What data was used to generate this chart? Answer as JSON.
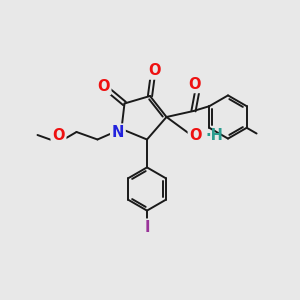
{
  "bg_color": "#e8e8e8",
  "bond_color": "#1a1a1a",
  "bond_width": 1.4,
  "atom_colors": {
    "O": "#ee1111",
    "N": "#2222dd",
    "I": "#993399",
    "OH_color": "#2a9d8f"
  },
  "font_size": 10.5,
  "fig_size": [
    3.0,
    3.0
  ],
  "dpi": 100
}
